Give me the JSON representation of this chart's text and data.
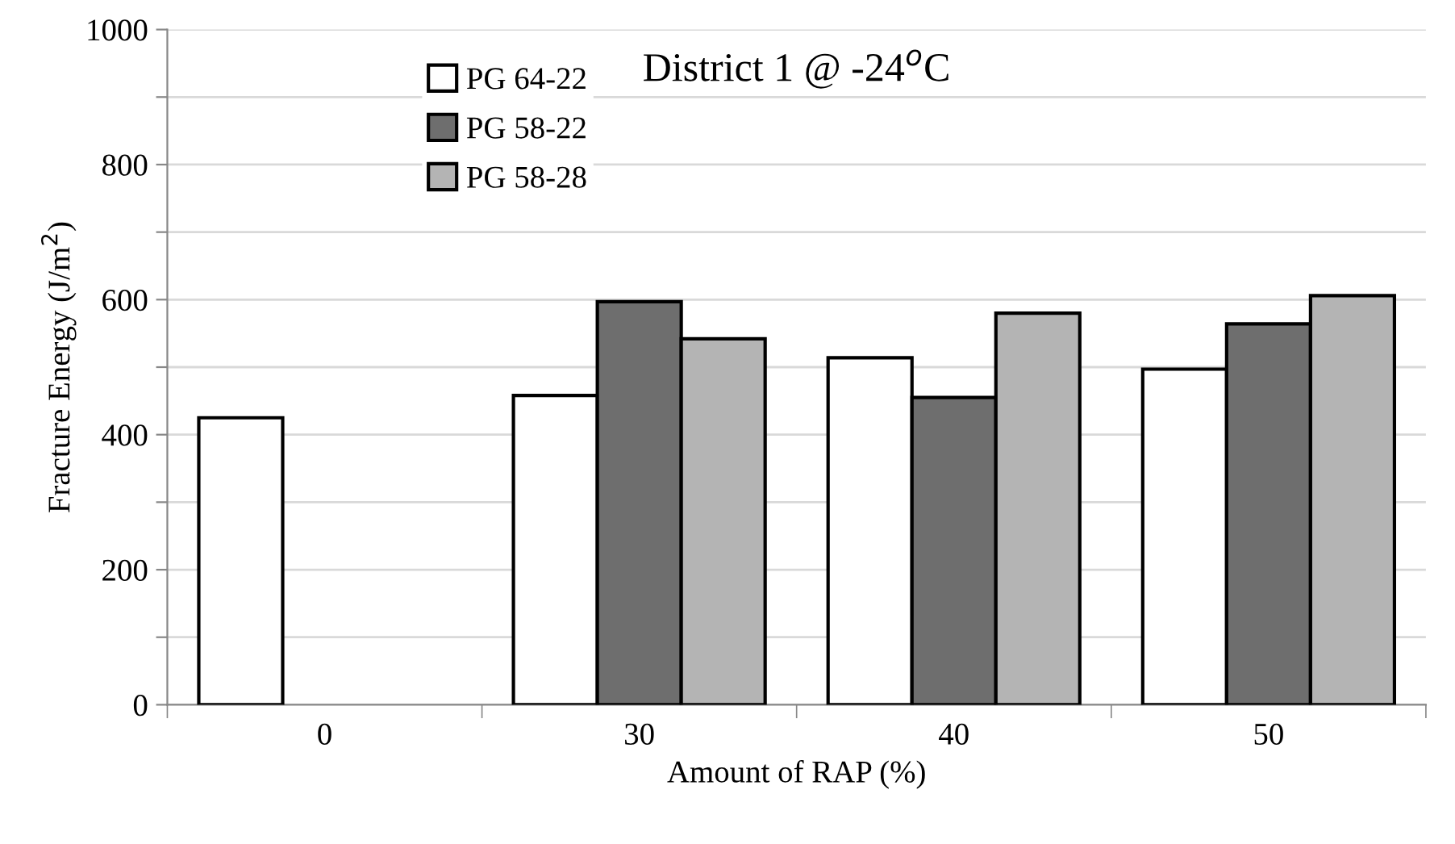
{
  "chart_data": {
    "type": "bar",
    "title": "District 1 @ -24$^{o}$C",
    "xlabel": "Amount of RAP (%)",
    "ylabel": "Fracture Energy (J/m$^{2}$)",
    "categories": [
      "0",
      "30",
      "40",
      "50"
    ],
    "series": [
      {
        "name": "PG 64-22",
        "color": "#ffffff",
        "values": [
          425,
          458,
          514,
          497
        ]
      },
      {
        "name": "PG 58-22",
        "color": "#6e6e6e",
        "values": [
          null,
          597,
          455,
          564
        ]
      },
      {
        "name": "PG 58-28",
        "color": "#b4b4b4",
        "values": [
          null,
          542,
          580,
          606
        ]
      }
    ],
    "ylim": [
      0,
      1000
    ],
    "yticks": [
      0,
      {
        "value": 100,
        "label": null
      },
      200,
      {
        "value": 300,
        "label": null
      },
      400,
      {
        "value": 500,
        "label": null
      },
      600,
      {
        "value": 700,
        "label": null
      },
      800,
      {
        "value": 900,
        "label": null
      },
      1000
    ],
    "grid": "y",
    "legend": "top left"
  }
}
